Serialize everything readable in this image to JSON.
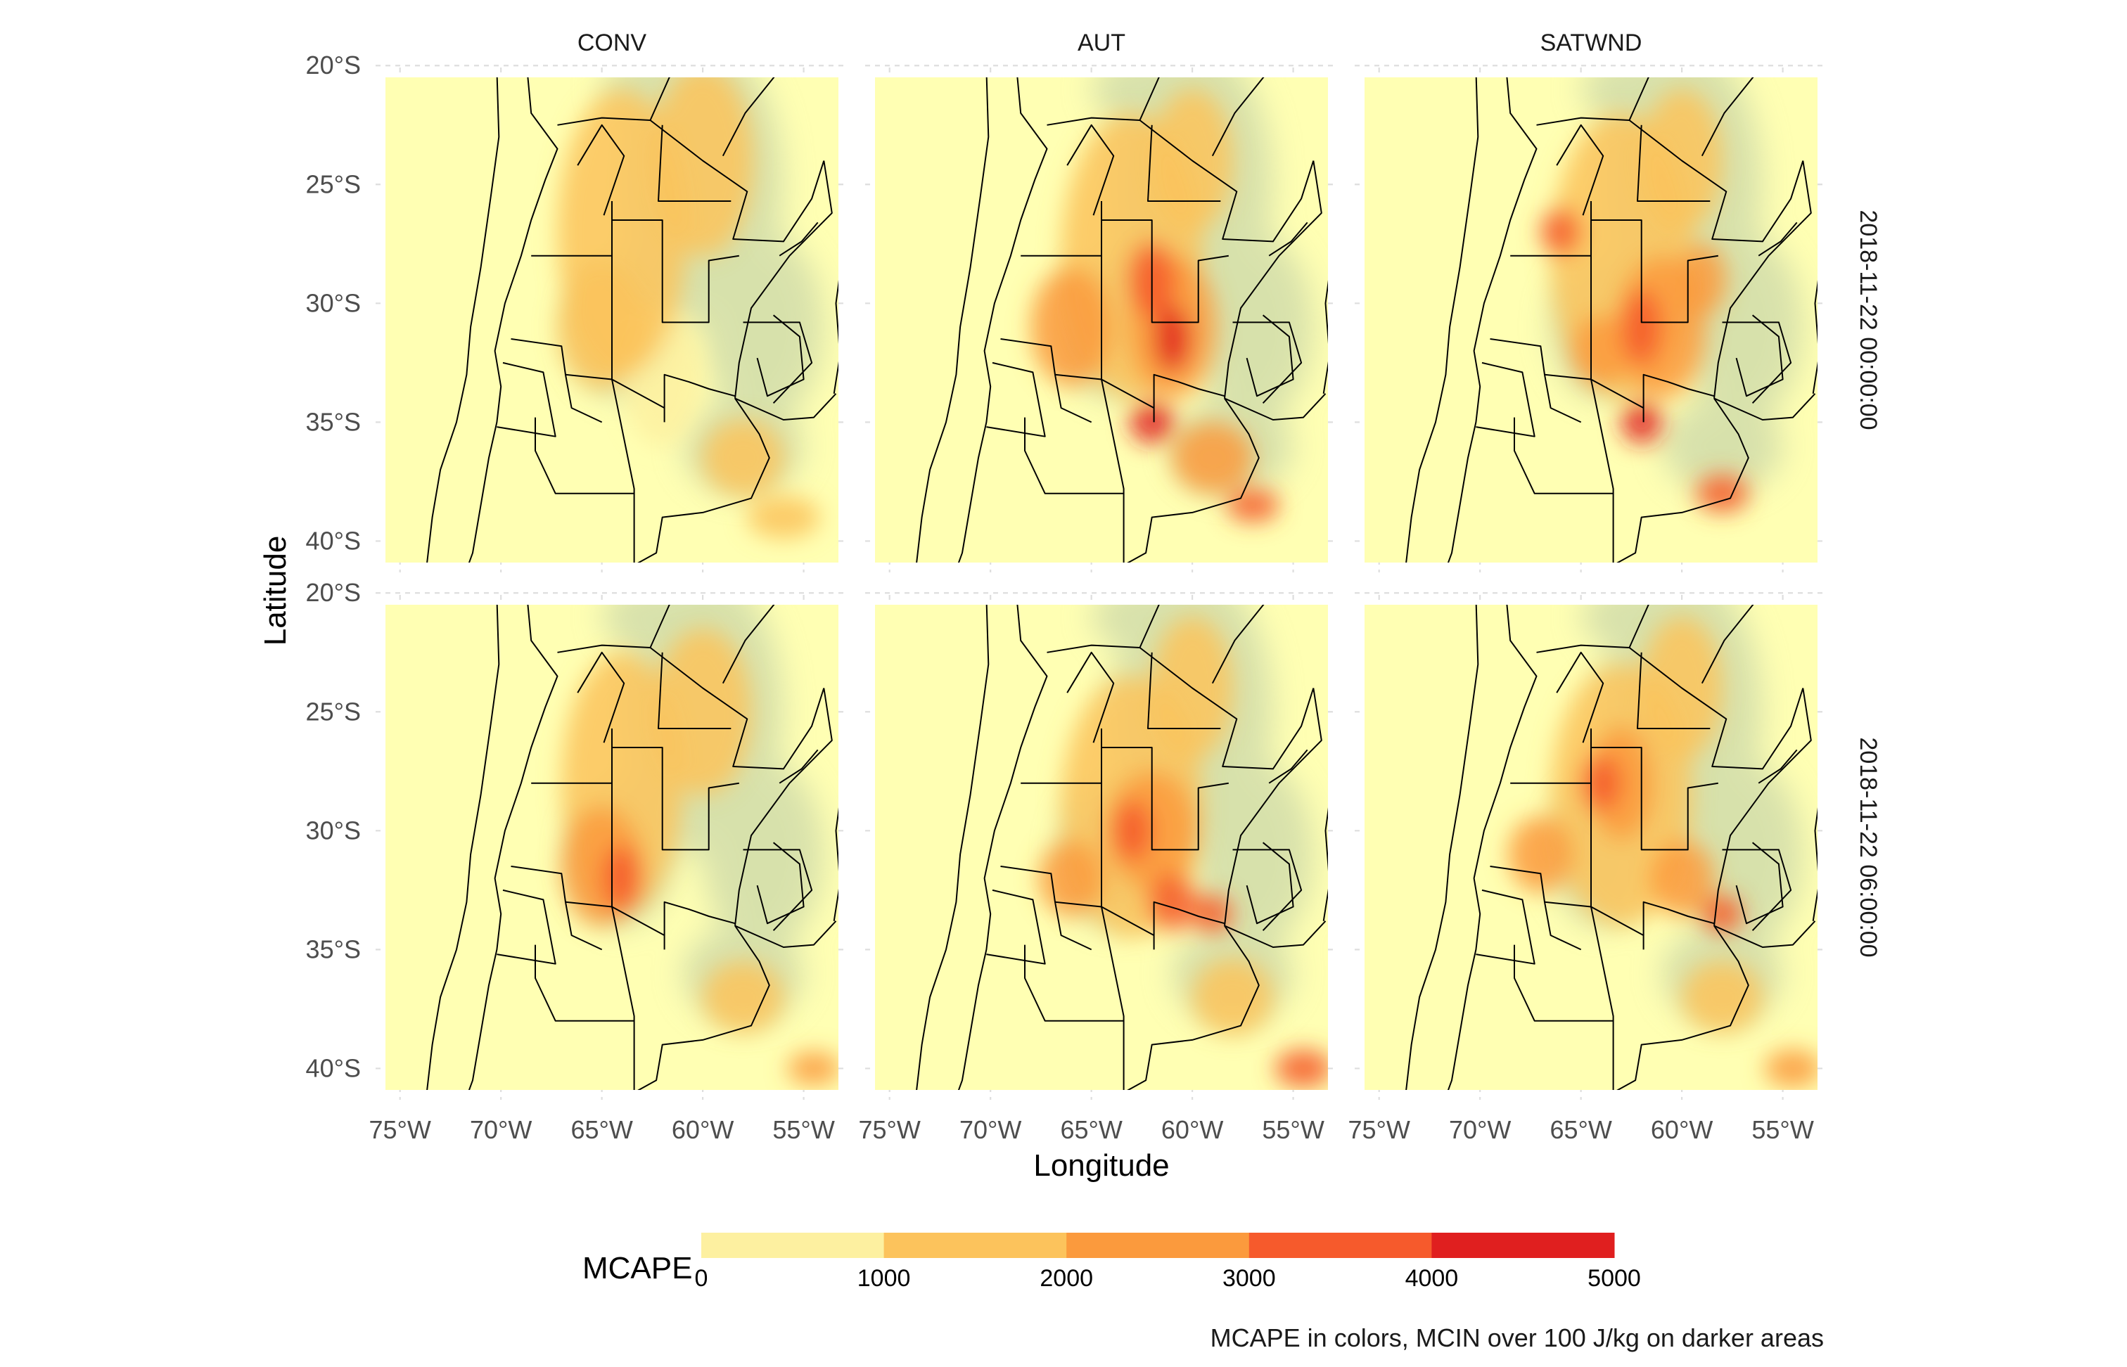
{
  "facets": {
    "columns": [
      "CONV",
      "AUT",
      "SATWND"
    ],
    "rows": [
      "2018-11-22 00:00:00",
      "2018-11-22 06:00:00"
    ]
  },
  "axes": {
    "x_title": "Longitude",
    "y_title": "Latitude",
    "x_ticks": [
      "75°W",
      "70°W",
      "65°W",
      "60°W",
      "55°W"
    ],
    "y_ticks": [
      "20°S",
      "25°S",
      "30°S",
      "35°S",
      "40°S"
    ],
    "x_range_deg": [
      -76,
      -53
    ],
    "y_range_deg": [
      -41.2,
      -20.2
    ],
    "grid": "dashed"
  },
  "legend": {
    "title": "MCAPE",
    "breaks": [
      "0",
      "1000",
      "2000",
      "3000",
      "4000",
      "5000"
    ],
    "colors": [
      "#fdf0a0",
      "#fcc35c",
      "#fb9a3d",
      "#f65a2c",
      "#e01f1f"
    ],
    "placement": "bottom"
  },
  "caption": "MCAPE in colors, MCIN over 100 J/kg on darker areas",
  "colors": {
    "panel_background": "#ffffb3",
    "cin_overlay": "#b8c9a6",
    "borders": "#000000",
    "grid": "#dedede"
  },
  "chart_data": {
    "type": "heatmap",
    "variable": "MCAPE",
    "units": "J/kg",
    "features": [
      {
        "panel": "CONV / 2018-11-22 00:00:00",
        "centers": [
          {
            "lon": -65,
            "lat": -30,
            "level": "1000-2000"
          },
          {
            "lon": -56,
            "lat": -39,
            "level": "1000-2000"
          }
        ]
      },
      {
        "panel": "AUT / 2018-11-22 00:00:00",
        "centers": [
          {
            "lon": -61,
            "lat": -31,
            "level": "4000-5000"
          },
          {
            "lon": -62,
            "lat": -35,
            "level": "4000-5000"
          },
          {
            "lon": -57,
            "lat": -38.5,
            "level": "3000-4000"
          }
        ]
      },
      {
        "panel": "SATWND / 2018-11-22 00:00:00",
        "centers": [
          {
            "lon": -62,
            "lat": -31,
            "level": "3000-4000"
          },
          {
            "lon": -62,
            "lat": -35,
            "level": "4000-5000"
          },
          {
            "lon": -66,
            "lat": -27,
            "level": "3000-4000"
          }
        ]
      },
      {
        "panel": "CONV / 2018-11-22 06:00:00",
        "centers": [
          {
            "lon": -64,
            "lat": -32,
            "level": "2000-3000"
          },
          {
            "lon": -54.5,
            "lat": -40,
            "level": "2000-3000"
          }
        ]
      },
      {
        "panel": "AUT / 2018-11-22 06:00:00",
        "centers": [
          {
            "lon": -63,
            "lat": -30,
            "level": "2000-3000"
          },
          {
            "lon": -59,
            "lat": -33.5,
            "level": "3000-4000"
          },
          {
            "lon": -54.5,
            "lat": -40,
            "level": "3000-4000"
          }
        ]
      },
      {
        "panel": "SATWND / 2018-11-22 06:00:00",
        "centers": [
          {
            "lon": -64,
            "lat": -28,
            "level": "2000-3000"
          },
          {
            "lon": -58,
            "lat": -33.5,
            "level": "3000-4000"
          },
          {
            "lon": -54.5,
            "lat": -40,
            "level": "2000-3000"
          }
        ]
      }
    ]
  }
}
